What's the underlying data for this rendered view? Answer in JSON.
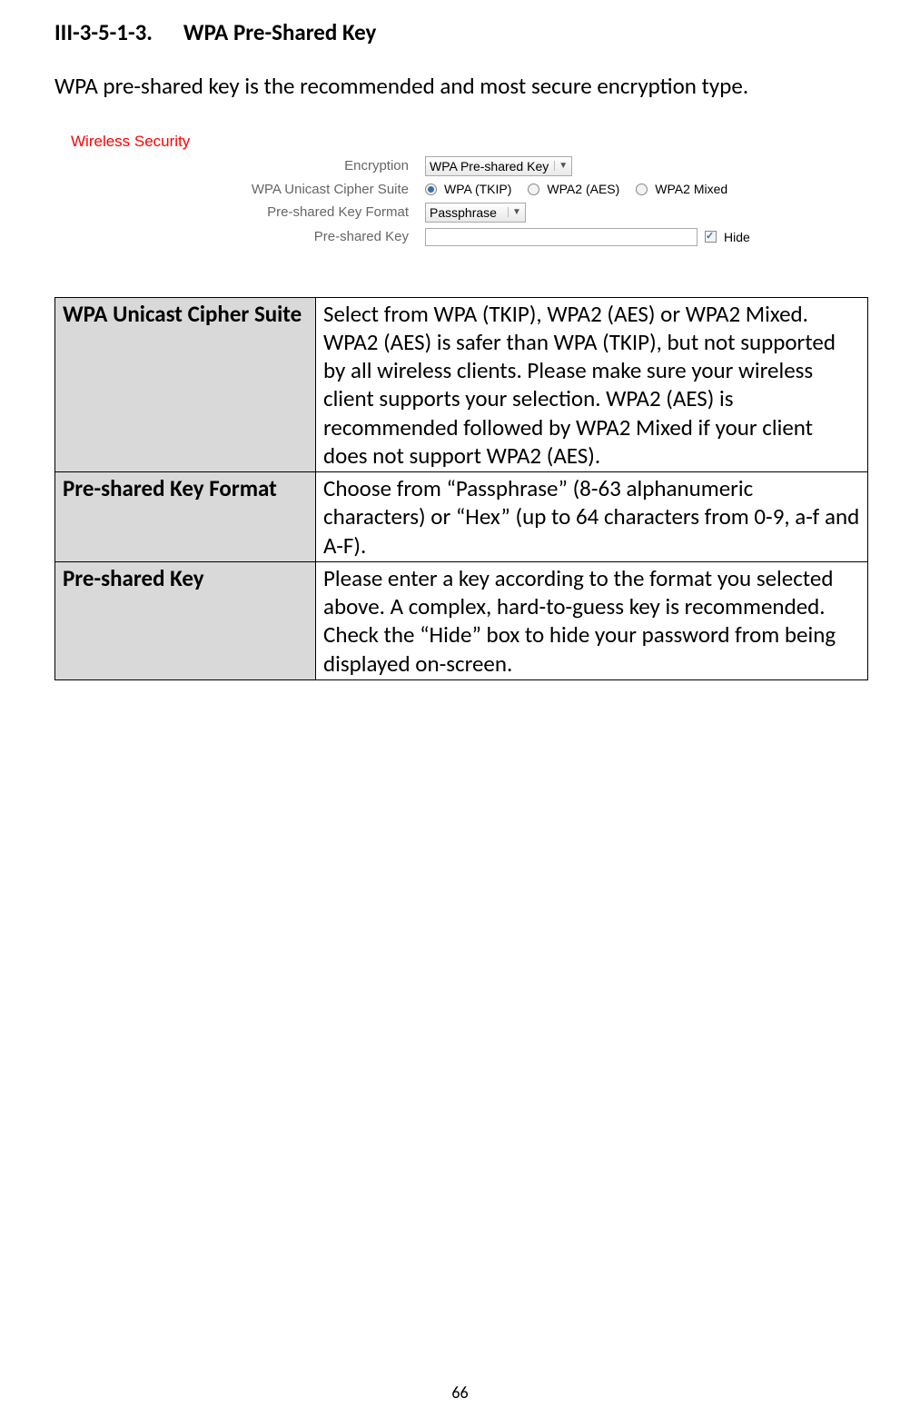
{
  "heading_number": "III-3-5-1-3.",
  "heading_title": "WPA Pre-Shared Key",
  "intro": "WPA pre-shared key is the recommended and most secure encryption type.",
  "panel": {
    "title": "Wireless  Security",
    "encryption": {
      "label": "Encryption",
      "value": "WPA Pre-shared Key"
    },
    "cipher": {
      "label": "WPA Unicast Cipher Suite",
      "options": [
        {
          "label": "WPA (TKIP)",
          "selected": true
        },
        {
          "label": "WPA2 (AES)",
          "selected": false
        },
        {
          "label": "WPA2 Mixed",
          "selected": false
        }
      ]
    },
    "format": {
      "label": "Pre-shared Key Format",
      "value": "Passphrase"
    },
    "key": {
      "label": "Pre-shared Key",
      "hide_label": "Hide",
      "hide_checked": true
    }
  },
  "table": {
    "rows": [
      {
        "label": "WPA Unicast Cipher Suite",
        "value": "Select from WPA (TKIP), WPA2 (AES) or WPA2 Mixed. WPA2 (AES) is safer than WPA (TKIP), but not supported by all wireless clients. Please make sure your wireless client supports your selection. WPA2 (AES) is recommended followed by WPA2 Mixed if your client does not support WPA2 (AES)."
      },
      {
        "label": "Pre-shared Key Format",
        "value": "Choose from “Passphrase” (8-63 alphanumeric characters) or “Hex” (up to 64 characters from 0-9, a-f and A-F)."
      },
      {
        "label": "Pre-shared Key",
        "value": "Please enter a key according to the format you selected above. A complex, hard-to-guess key is recommended. Check the “Hide” box to hide your password from being displayed on-screen."
      }
    ]
  },
  "page_number": "66"
}
